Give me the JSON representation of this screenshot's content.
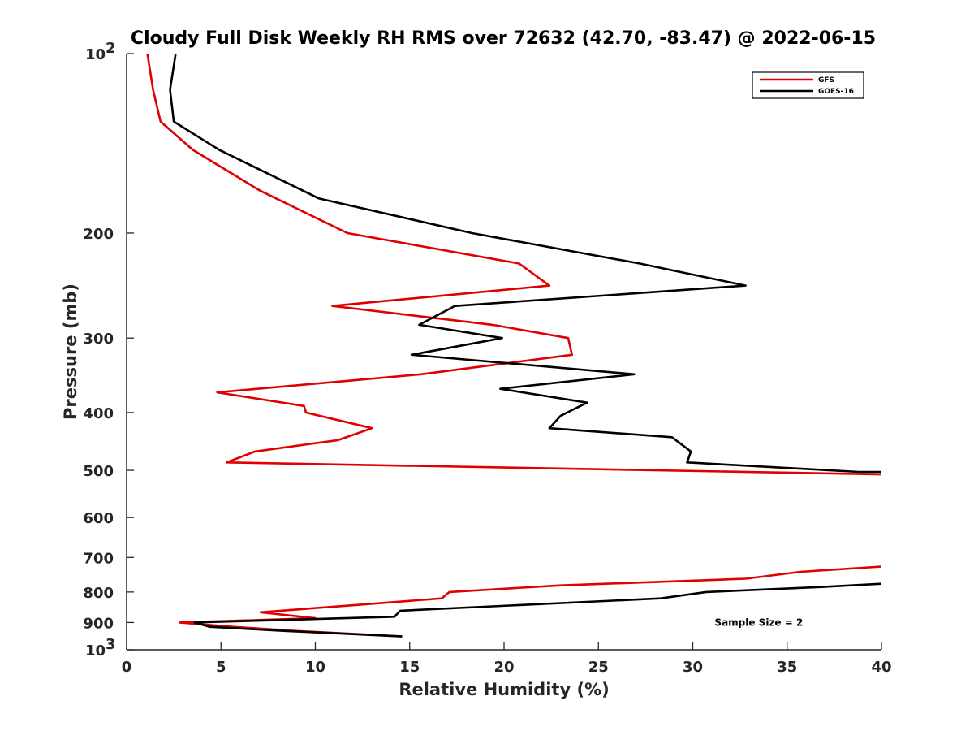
{
  "chart_data": {
    "type": "line",
    "title": "Cloudy Full Disk Weekly RH RMS over 72632 (42.70, -83.47) @ 2022-06-15",
    "xlabel": "Relative Humidity (%)",
    "ylabel": "Pressure (mb)",
    "xlim": [
      0,
      40
    ],
    "ylim": [
      100,
      1000
    ],
    "yscale": "log",
    "y_reversed": true,
    "grid": false,
    "legend_position": "top-right",
    "x_ticks": [
      "0",
      "5",
      "10",
      "15",
      "20",
      "25",
      "30",
      "35",
      "40"
    ],
    "y_ticks": [
      {
        "value": 100,
        "base": "10",
        "exp": "2"
      },
      {
        "value": 200,
        "label": "200"
      },
      {
        "value": 300,
        "label": "300"
      },
      {
        "value": 400,
        "label": "400"
      },
      {
        "value": 500,
        "label": "500"
      },
      {
        "value": 600,
        "label": "600"
      },
      {
        "value": 700,
        "label": "700"
      },
      {
        "value": 800,
        "label": "800"
      },
      {
        "value": 900,
        "label": "900"
      },
      {
        "value": 1000,
        "base": "10",
        "exp": "3"
      }
    ],
    "series": [
      {
        "name": "GFS",
        "color": "#e00000",
        "segments": [
          [
            [
              1.1,
              100
            ],
            [
              1.4,
              115
            ],
            [
              1.8,
              130
            ],
            [
              3.5,
              145
            ],
            [
              7.1,
              170
            ],
            [
              11.7,
              200
            ],
            [
              20.8,
              225
            ],
            [
              22.4,
              245
            ],
            [
              10.9,
              265
            ],
            [
              19.4,
              285
            ],
            [
              23.4,
              300
            ],
            [
              23.6,
              320
            ],
            [
              15.6,
              345
            ],
            [
              4.8,
              370
            ],
            [
              9.4,
              390
            ],
            [
              9.5,
              400
            ],
            [
              13.0,
              425
            ],
            [
              11.2,
              445
            ],
            [
              6.8,
              465
            ],
            [
              5.3,
              485
            ],
            [
              40,
              508
            ]
          ],
          [
            [
              40,
              725
            ],
            [
              35.7,
              740
            ],
            [
              32.8,
              760
            ],
            [
              22.9,
              780
            ],
            [
              17.1,
              800
            ],
            [
              16.7,
              820
            ],
            [
              12.4,
              840
            ],
            [
              7.1,
              865
            ],
            [
              10.0,
              885
            ],
            [
              2.8,
              900
            ],
            [
              5.6,
              915
            ],
            [
              9.1,
              930
            ],
            [
              14.6,
              950
            ]
          ]
        ]
      },
      {
        "name": "GOES-16",
        "color": "#000000",
        "segments": [
          [
            [
              2.6,
              100
            ],
            [
              2.3,
              115
            ],
            [
              2.5,
              130
            ],
            [
              4.9,
              145
            ],
            [
              10.2,
              175
            ],
            [
              18.3,
              200
            ],
            [
              27.2,
              225
            ],
            [
              32.8,
              245
            ],
            [
              17.4,
              265
            ],
            [
              15.5,
              285
            ],
            [
              19.9,
              300
            ],
            [
              15.1,
              320
            ],
            [
              26.9,
              345
            ],
            [
              19.8,
              365
            ],
            [
              24.4,
              385
            ],
            [
              23.0,
              405
            ],
            [
              22.4,
              425
            ],
            [
              28.9,
              440
            ],
            [
              29.9,
              465
            ],
            [
              29.7,
              485
            ],
            [
              38.8,
              503
            ],
            [
              40,
              503
            ]
          ],
          [
            [
              40,
              775
            ],
            [
              36.7,
              785
            ],
            [
              30.7,
              800
            ],
            [
              28.3,
              820
            ],
            [
              14.5,
              860
            ],
            [
              14.2,
              880
            ],
            [
              3.6,
              900
            ],
            [
              4.4,
              915
            ],
            [
              8.5,
              930
            ],
            [
              14.6,
              950
            ]
          ]
        ]
      }
    ],
    "annotations": [
      {
        "text": "Sample Size = 2",
        "x": 33.5,
        "y": 900
      }
    ]
  }
}
